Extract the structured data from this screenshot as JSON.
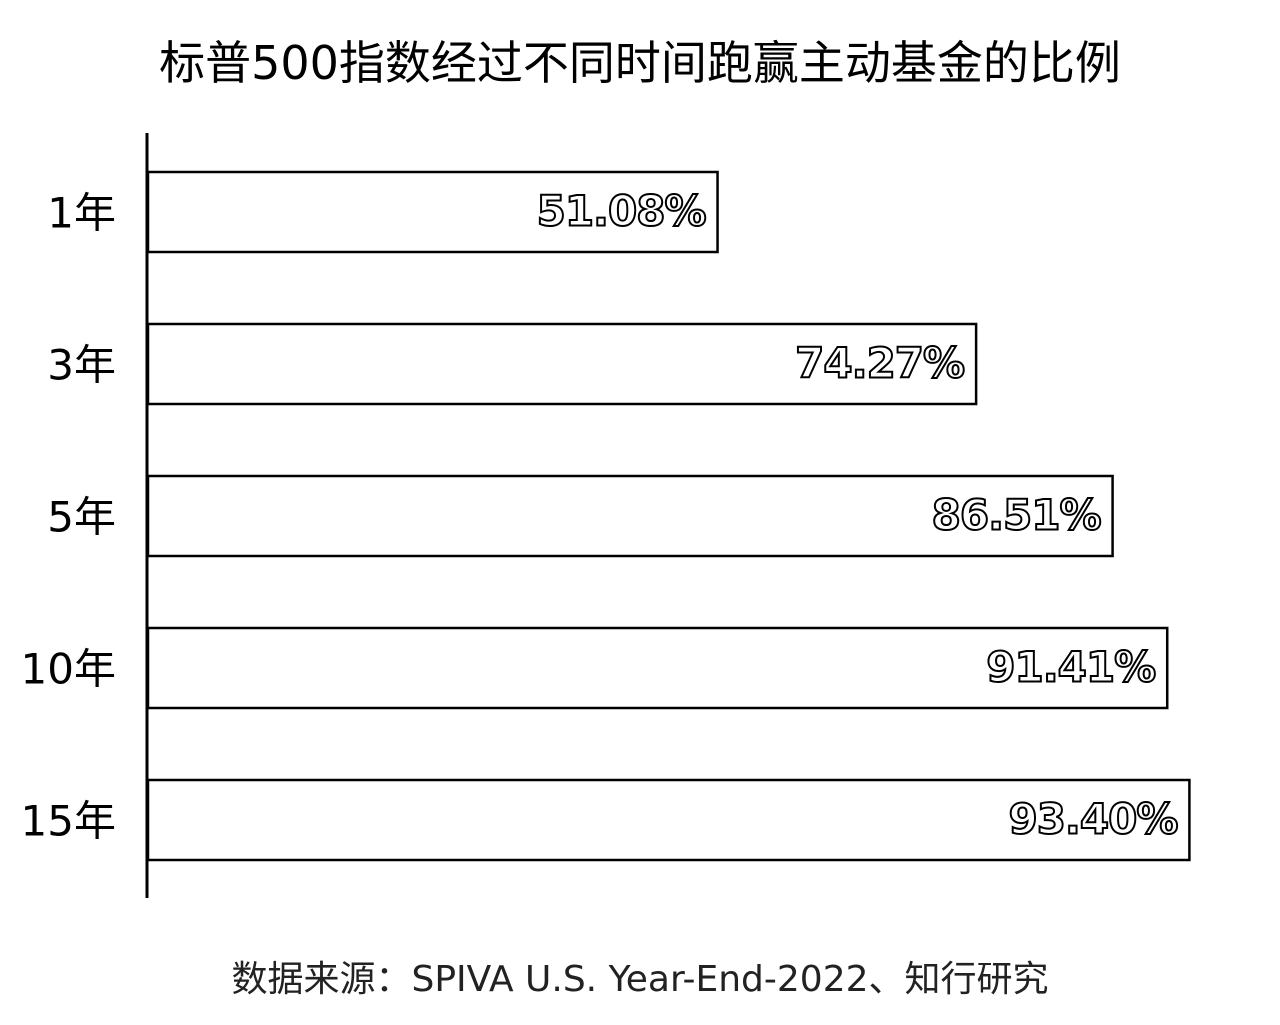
{
  "chart_data": {
    "type": "bar",
    "orientation": "horizontal",
    "title": "标普500指数经过不同时间跑赢主动基金的比例",
    "categories": [
      "1年",
      "3年",
      "5年",
      "10年",
      "15年"
    ],
    "values": [
      51.08,
      74.27,
      86.51,
      91.41,
      93.4
    ],
    "data_labels": [
      "51.08%",
      "74.27%",
      "86.51%",
      "91.41%",
      "93.40%"
    ],
    "unit": "%",
    "xlim": [
      0,
      100
    ],
    "grid": false,
    "legend": "none",
    "colors": {
      "bar_fill": "#ffffff",
      "bar_stroke": "#000000",
      "axis": "#000000",
      "text": "#000000"
    }
  },
  "source": "数据来源：SPIVA U.S. Year-End-2022、知行研究"
}
